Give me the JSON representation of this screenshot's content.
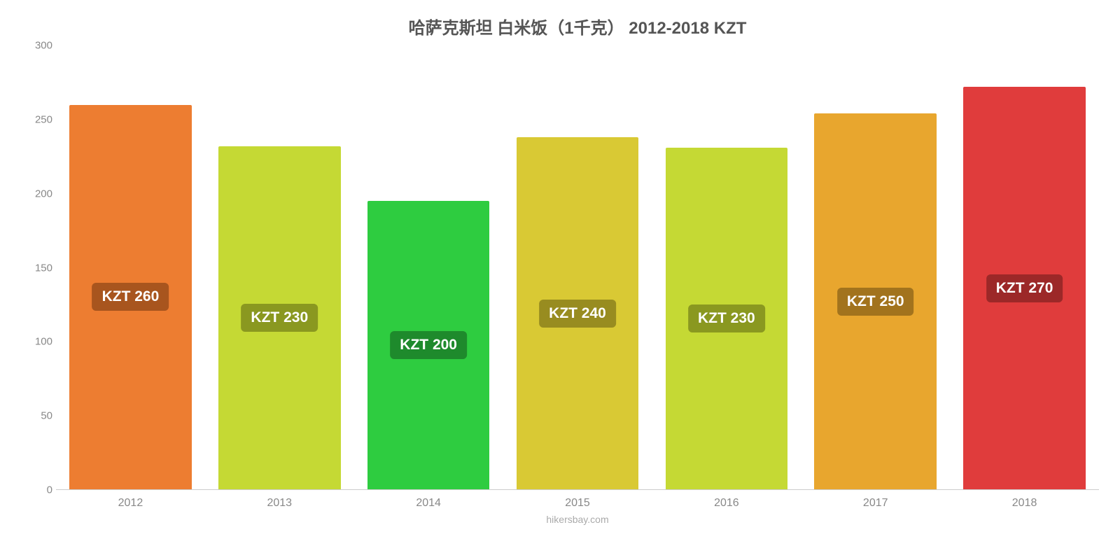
{
  "chart": {
    "type": "bar",
    "title": "哈萨克斯坦 白米饭（1千克） 2012-2018 KZT",
    "title_color": "#555555",
    "title_fontsize": 24,
    "attribution": "hikersbay.com",
    "attribution_color": "#aaaaaa",
    "background_color": "#ffffff",
    "ylim": [
      0,
      300
    ],
    "ytick_step": 50,
    "yticks": [
      {
        "value": 0,
        "label": "0"
      },
      {
        "value": 50,
        "label": "50"
      },
      {
        "value": 100,
        "label": "100"
      },
      {
        "value": 150,
        "label": "150"
      },
      {
        "value": 200,
        "label": "200"
      },
      {
        "value": 250,
        "label": "250"
      },
      {
        "value": 300,
        "label": "300"
      }
    ],
    "axis_label_color": "#888888",
    "axis_label_fontsize": 15,
    "axis_line_color": "#cccccc",
    "bar_width_ratio": 0.82,
    "bar_label_fontsize": 21,
    "bar_label_text_color": "#ffffff",
    "bars": [
      {
        "category": "2012",
        "value": 260,
        "label": "KZT 260",
        "color": "#ed7d31",
        "label_bg": "#a8551e"
      },
      {
        "category": "2013",
        "value": 232,
        "label": "KZT 230",
        "color": "#c5d934",
        "label_bg": "#8a9820"
      },
      {
        "category": "2014",
        "value": 195,
        "label": "KZT 200",
        "color": "#2ecc40",
        "label_bg": "#1e8a2c"
      },
      {
        "category": "2015",
        "value": 238,
        "label": "KZT 240",
        "color": "#d9c934",
        "label_bg": "#988c20"
      },
      {
        "category": "2016",
        "value": 231,
        "label": "KZT 230",
        "color": "#c5d934",
        "label_bg": "#8a9820"
      },
      {
        "category": "2017",
        "value": 254,
        "label": "KZT 250",
        "color": "#e8a62e",
        "label_bg": "#a2731d"
      },
      {
        "category": "2018",
        "value": 272,
        "label": "KZT 270",
        "color": "#e03c3c",
        "label_bg": "#9c2828"
      }
    ]
  }
}
